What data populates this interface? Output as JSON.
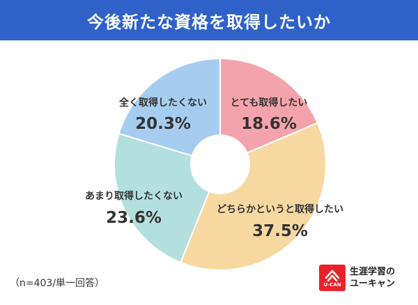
{
  "header": {
    "title": "今後新たな資格を取得したいか"
  },
  "chart_data": {
    "type": "pie",
    "donut": true,
    "title": "今後新たな資格を取得したいか",
    "slices": [
      {
        "label": "とても取得したい",
        "value": 18.6,
        "value_label": "18.6%",
        "color": "#f4a3ac"
      },
      {
        "label": "どちらかというと取得したい",
        "value": 37.5,
        "value_label": "37.5%",
        "color": "#f7d8a1"
      },
      {
        "label": "あまり取得したくない",
        "value": 23.6,
        "value_label": "23.6%",
        "color": "#b3e0df"
      },
      {
        "label": "全く取得したくない",
        "value": 20.3,
        "value_label": "20.3%",
        "color": "#a6cdf0"
      }
    ],
    "start": "12 o'clock",
    "direction": "clockwise"
  },
  "footer": {
    "note": "（n=403/単一回答）",
    "logo_mark_text": "U-CAN",
    "logo_line1": "生涯学習の",
    "logo_line2": "ユーキャン",
    "logo_color": "#e8232b"
  }
}
